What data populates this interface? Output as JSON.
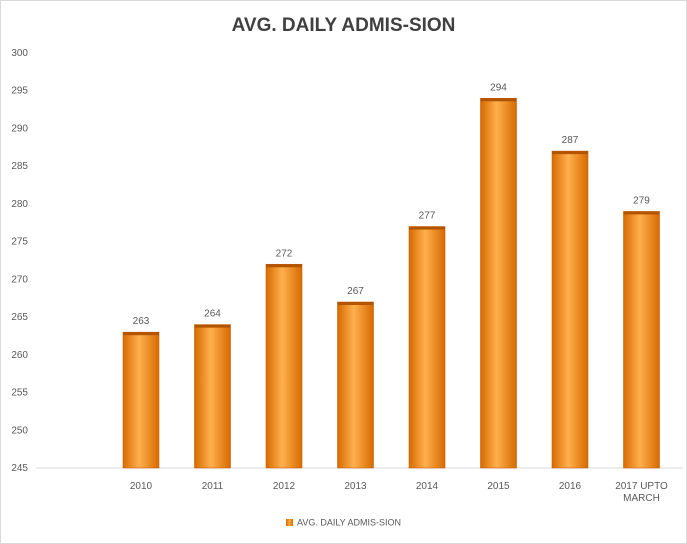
{
  "chart_data": {
    "type": "bar",
    "title": "AVG. DAILY ADMIS-SION",
    "categories": [
      "2010",
      "2011",
      "2012",
      "2013",
      "2014",
      "2015",
      "2016",
      "2017 UPTO MARCH"
    ],
    "series": [
      {
        "name": "AVG. DAILY ADMIS-SION",
        "values": [
          263,
          264,
          272,
          267,
          277,
          294,
          287,
          279
        ]
      }
    ],
    "ylim": [
      245,
      300
    ],
    "yticks": [
      245,
      250,
      255,
      260,
      265,
      270,
      275,
      280,
      285,
      290,
      295,
      300
    ],
    "grid": false,
    "legend": "bottom",
    "data_labels": true,
    "colors": {
      "bar": "#f59a23",
      "bar_dark": "#d66a00",
      "bar_light": "#ffb04d",
      "text": "#595959",
      "axis": "#d9d9d9"
    }
  }
}
